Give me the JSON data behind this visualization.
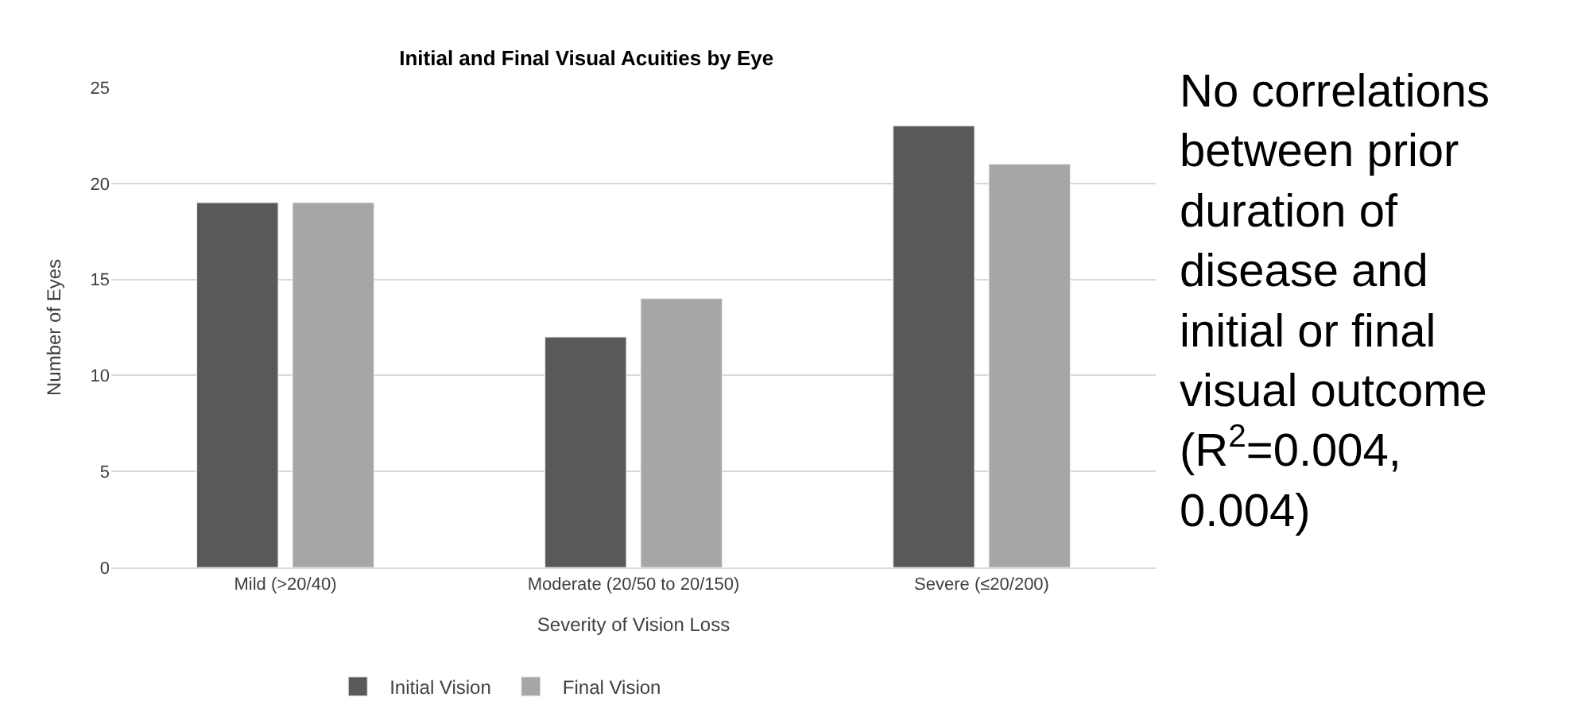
{
  "chart_data": {
    "type": "bar",
    "title": "Initial and Final Visual Acuities by Eye",
    "xlabel": "Severity of Vision Loss",
    "ylabel": "Number of Eyes",
    "categories": [
      "Mild (>20/40)",
      "Moderate (20/50 to 20/150)",
      "Severe (≤20/200)"
    ],
    "series": [
      {
        "name": "Initial Vision",
        "color": "#595959",
        "values": [
          19,
          12,
          23
        ]
      },
      {
        "name": "Final Vision",
        "color": "#a6a6a6",
        "values": [
          19,
          14,
          21
        ]
      }
    ],
    "ylim": [
      0,
      25
    ],
    "yticks": [
      0,
      5,
      10,
      15,
      20,
      25
    ],
    "grid": "y",
    "legend": "bottom",
    "annotations": [
      "No correlations between prior duration of disease and initial or final visual outcome (R$^{2}$=0.004, 0.004)"
    ]
  }
}
